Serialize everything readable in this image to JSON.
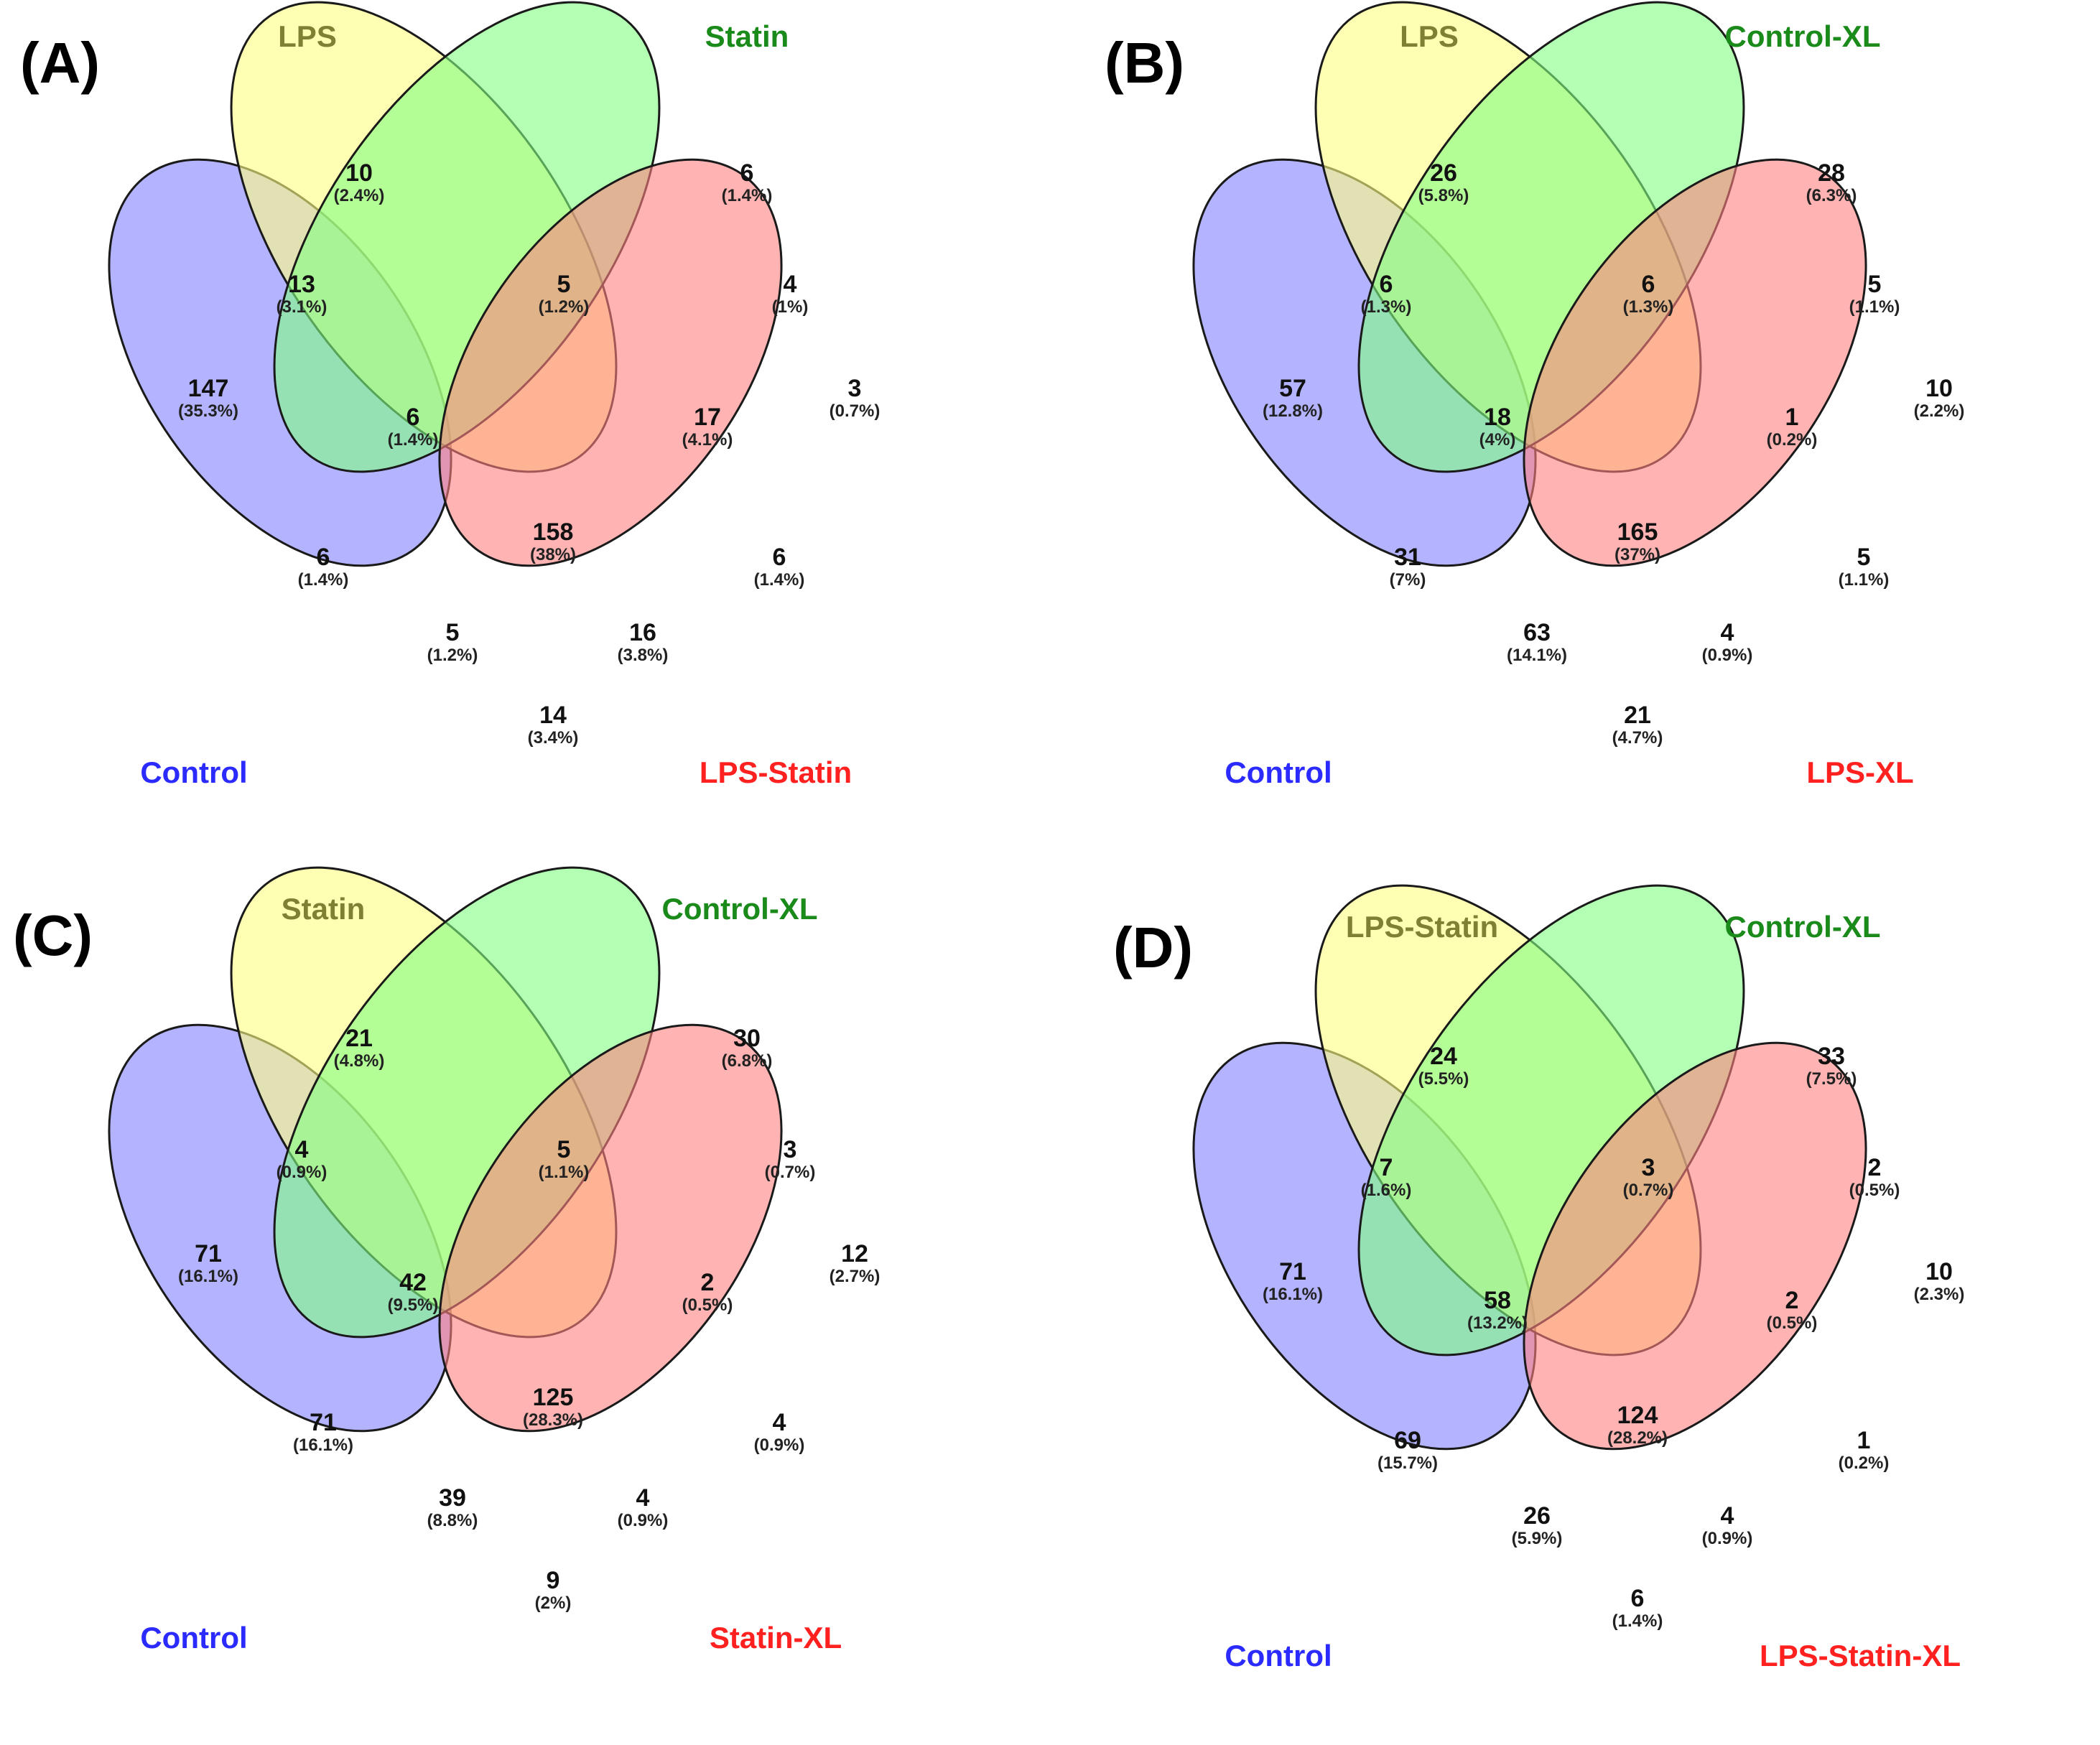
{
  "colors": {
    "set1": "#8080ff",
    "set2": "#ffff80",
    "set3": "#80ff80",
    "set4": "#ff8080",
    "label1": "#2b2bff",
    "label2": "#808033",
    "label3": "#1a8a1a",
    "label4": "#ff2020"
  },
  "panels": [
    {
      "label": "(A)",
      "sets": [
        "Control",
        "LPS",
        "Statin",
        "LPS-Statin"
      ],
      "regions": {
        "c": {
          "count": "147",
          "pct": "(35.3%)"
        },
        "l": {
          "count": "10",
          "pct": "(2.4%)"
        },
        "s": {
          "count": "6",
          "pct": "(1.4%)"
        },
        "ls": {
          "count": "3",
          "pct": "(0.7%)"
        },
        "cl": {
          "count": "13",
          "pct": "(3.1%)"
        },
        "lS": {
          "count": "5",
          "pct": "(1.2%)"
        },
        "sls": {
          "count": "4",
          "pct": "(1%)"
        },
        "clS": {
          "count": "6",
          "pct": "(1.4%)"
        },
        "lSls": {
          "count": "17",
          "pct": "(4.1%)"
        },
        "all": {
          "count": "158",
          "pct": "(38%)"
        },
        "cS": {
          "count": "6",
          "pct": "(1.4%)"
        },
        "lLs": {
          "count": "6",
          "pct": "(1.4%)"
        },
        "cSls": {
          "count": "5",
          "pct": "(1.2%)"
        },
        "clLs": {
          "count": "16",
          "pct": "(3.8%)"
        },
        "cLs": {
          "count": "14",
          "pct": "(3.4%)"
        }
      }
    },
    {
      "label": "(B)",
      "sets": [
        "Control",
        "LPS",
        "Control-XL",
        "LPS-XL"
      ],
      "regions": {
        "c": {
          "count": "57",
          "pct": "(12.8%)"
        },
        "l": {
          "count": "26",
          "pct": "(5.8%)"
        },
        "s": {
          "count": "28",
          "pct": "(6.3%)"
        },
        "ls": {
          "count": "10",
          "pct": "(2.2%)"
        },
        "cl": {
          "count": "6",
          "pct": "(1.3%)"
        },
        "lS": {
          "count": "6",
          "pct": "(1.3%)"
        },
        "sls": {
          "count": "5",
          "pct": "(1.1%)"
        },
        "clS": {
          "count": "18",
          "pct": "(4%)"
        },
        "lSls": {
          "count": "1",
          "pct": "(0.2%)"
        },
        "all": {
          "count": "165",
          "pct": "(37%)"
        },
        "cS": {
          "count": "31",
          "pct": "(7%)"
        },
        "lLs": {
          "count": "5",
          "pct": "(1.1%)"
        },
        "cSls": {
          "count": "63",
          "pct": "(14.1%)"
        },
        "clLs": {
          "count": "4",
          "pct": "(0.9%)"
        },
        "cLs": {
          "count": "21",
          "pct": "(4.7%)"
        }
      }
    },
    {
      "label": "(C)",
      "sets": [
        "Control",
        "Statin",
        "Control-XL",
        "Statin-XL"
      ],
      "regions": {
        "c": {
          "count": "71",
          "pct": "(16.1%)"
        },
        "l": {
          "count": "21",
          "pct": "(4.8%)"
        },
        "s": {
          "count": "30",
          "pct": "(6.8%)"
        },
        "ls": {
          "count": "12",
          "pct": "(2.7%)"
        },
        "cl": {
          "count": "4",
          "pct": "(0.9%)"
        },
        "lS": {
          "count": "5",
          "pct": "(1.1%)"
        },
        "sls": {
          "count": "3",
          "pct": "(0.7%)"
        },
        "clS": {
          "count": "42",
          "pct": "(9.5%)"
        },
        "lSls": {
          "count": "2",
          "pct": "(0.5%)"
        },
        "all": {
          "count": "125",
          "pct": "(28.3%)"
        },
        "cS": {
          "count": "71",
          "pct": "(16.1%)"
        },
        "lLs": {
          "count": "4",
          "pct": "(0.9%)"
        },
        "cSls": {
          "count": "39",
          "pct": "(8.8%)"
        },
        "clLs": {
          "count": "4",
          "pct": "(0.9%)"
        },
        "cLs": {
          "count": "9",
          "pct": "(2%)"
        }
      }
    },
    {
      "label": "(D)",
      "sets": [
        "Control",
        "LPS-Statin",
        "Control-XL",
        "LPS-Statin-XL"
      ],
      "regions": {
        "c": {
          "count": "71",
          "pct": "(16.1%)"
        },
        "l": {
          "count": "24",
          "pct": "(5.5%)"
        },
        "s": {
          "count": "33",
          "pct": "(7.5%)"
        },
        "ls": {
          "count": "10",
          "pct": "(2.3%)"
        },
        "cl": {
          "count": "7",
          "pct": "(1.6%)"
        },
        "lS": {
          "count": "3",
          "pct": "(0.7%)"
        },
        "sls": {
          "count": "2",
          "pct": "(0.5%)"
        },
        "clS": {
          "count": "58",
          "pct": "(13.2%)"
        },
        "lSls": {
          "count": "2",
          "pct": "(0.5%)"
        },
        "all": {
          "count": "124",
          "pct": "(28.2%)"
        },
        "cS": {
          "count": "69",
          "pct": "(15.7%)"
        },
        "lLs": {
          "count": "1",
          "pct": "(0.2%)"
        },
        "cSls": {
          "count": "26",
          "pct": "(5.9%)"
        },
        "clLs": {
          "count": "4",
          "pct": "(0.9%)"
        },
        "cLs": {
          "count": "6",
          "pct": "(1.4%)"
        }
      }
    }
  ]
}
